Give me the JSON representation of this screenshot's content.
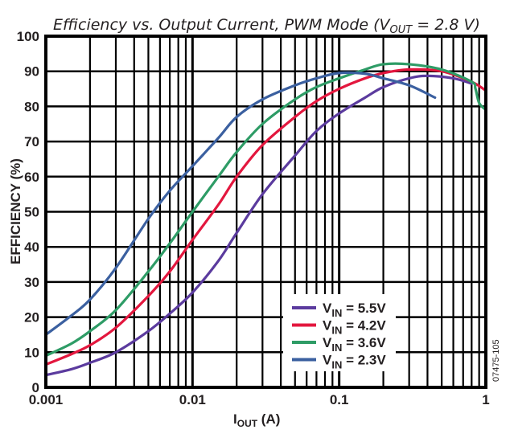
{
  "chart_data": {
    "type": "line",
    "title": "Efficiency vs. Output Current, PWM Mode (V",
    "title_sub": "OUT",
    "title_tail": " = 2.8 V)",
    "xlabel": "I",
    "xlabel_sub": "OUT",
    "xlabel_tail": " (A)",
    "ylabel": "EFFICIENCY (%)",
    "xscale": "log",
    "xlim": [
      0.001,
      1
    ],
    "ylim": [
      0,
      100
    ],
    "grid": true,
    "xticks": [
      0.001,
      0.01,
      0.1,
      1
    ],
    "xtick_labels": [
      "0.001",
      "0.01",
      "0.1",
      "1"
    ],
    "yticks": [
      0,
      10,
      20,
      30,
      40,
      50,
      60,
      70,
      80,
      90,
      100
    ],
    "ytick_labels": [
      "0",
      "10",
      "20",
      "30",
      "40",
      "50",
      "60",
      "70",
      "80",
      "90",
      "100"
    ],
    "legend_position": "bottom-center",
    "figure_id": "07475-105",
    "series": [
      {
        "name": "VIN = 5.5V",
        "label_main": "V",
        "label_sub": "IN",
        "label_tail": " = 5.5V",
        "color": "#5b3b9e",
        "x": [
          0.001,
          0.0015,
          0.002,
          0.003,
          0.005,
          0.007,
          0.01,
          0.015,
          0.02,
          0.03,
          0.05,
          0.07,
          0.1,
          0.15,
          0.2,
          0.3,
          0.4,
          0.6,
          0.8
        ],
        "y": [
          3.5,
          5.2,
          7,
          10,
          16,
          21,
          27,
          36,
          44,
          55,
          66,
          73,
          78,
          82.5,
          85.5,
          88,
          88.7,
          88,
          86.5
        ]
      },
      {
        "name": "VIN = 4.2V",
        "label_main": "V",
        "label_sub": "IN",
        "label_tail": " = 4.2V",
        "color": "#e3173e",
        "x": [
          0.001,
          0.0015,
          0.002,
          0.003,
          0.005,
          0.007,
          0.01,
          0.015,
          0.02,
          0.03,
          0.05,
          0.07,
          0.1,
          0.15,
          0.2,
          0.3,
          0.5,
          0.8,
          1
        ],
        "y": [
          6.5,
          9.5,
          12,
          17,
          26,
          33,
          42,
          52,
          60,
          69,
          77,
          81.5,
          85,
          88,
          89.5,
          90.5,
          90,
          87,
          84.5
        ]
      },
      {
        "name": "VIN = 3.6V",
        "label_main": "V",
        "label_sub": "IN",
        "label_tail": " = 3.6V",
        "color": "#2e9c66",
        "x": [
          0.001,
          0.0015,
          0.002,
          0.003,
          0.005,
          0.007,
          0.01,
          0.015,
          0.02,
          0.03,
          0.05,
          0.07,
          0.1,
          0.15,
          0.2,
          0.3,
          0.5,
          0.8,
          0.85,
          0.9,
          1
        ],
        "y": [
          9,
          12.5,
          16,
          22,
          33,
          41,
          50,
          60,
          67,
          75,
          82,
          85.5,
          88,
          90.5,
          92,
          92,
          90.5,
          87,
          85,
          81,
          79
        ]
      },
      {
        "name": "VIN = 2.3V",
        "label_main": "V",
        "label_sub": "IN",
        "label_tail": " = 2.3V",
        "color": "#3b60a0",
        "x": [
          0.001,
          0.0015,
          0.002,
          0.003,
          0.005,
          0.007,
          0.01,
          0.015,
          0.02,
          0.03,
          0.05,
          0.07,
          0.1,
          0.15,
          0.2,
          0.3,
          0.45
        ],
        "y": [
          15,
          20.5,
          25,
          34,
          48,
          56,
          63,
          71,
          77,
          82,
          86,
          88,
          89.5,
          89.3,
          88,
          86,
          82.5
        ]
      }
    ]
  }
}
